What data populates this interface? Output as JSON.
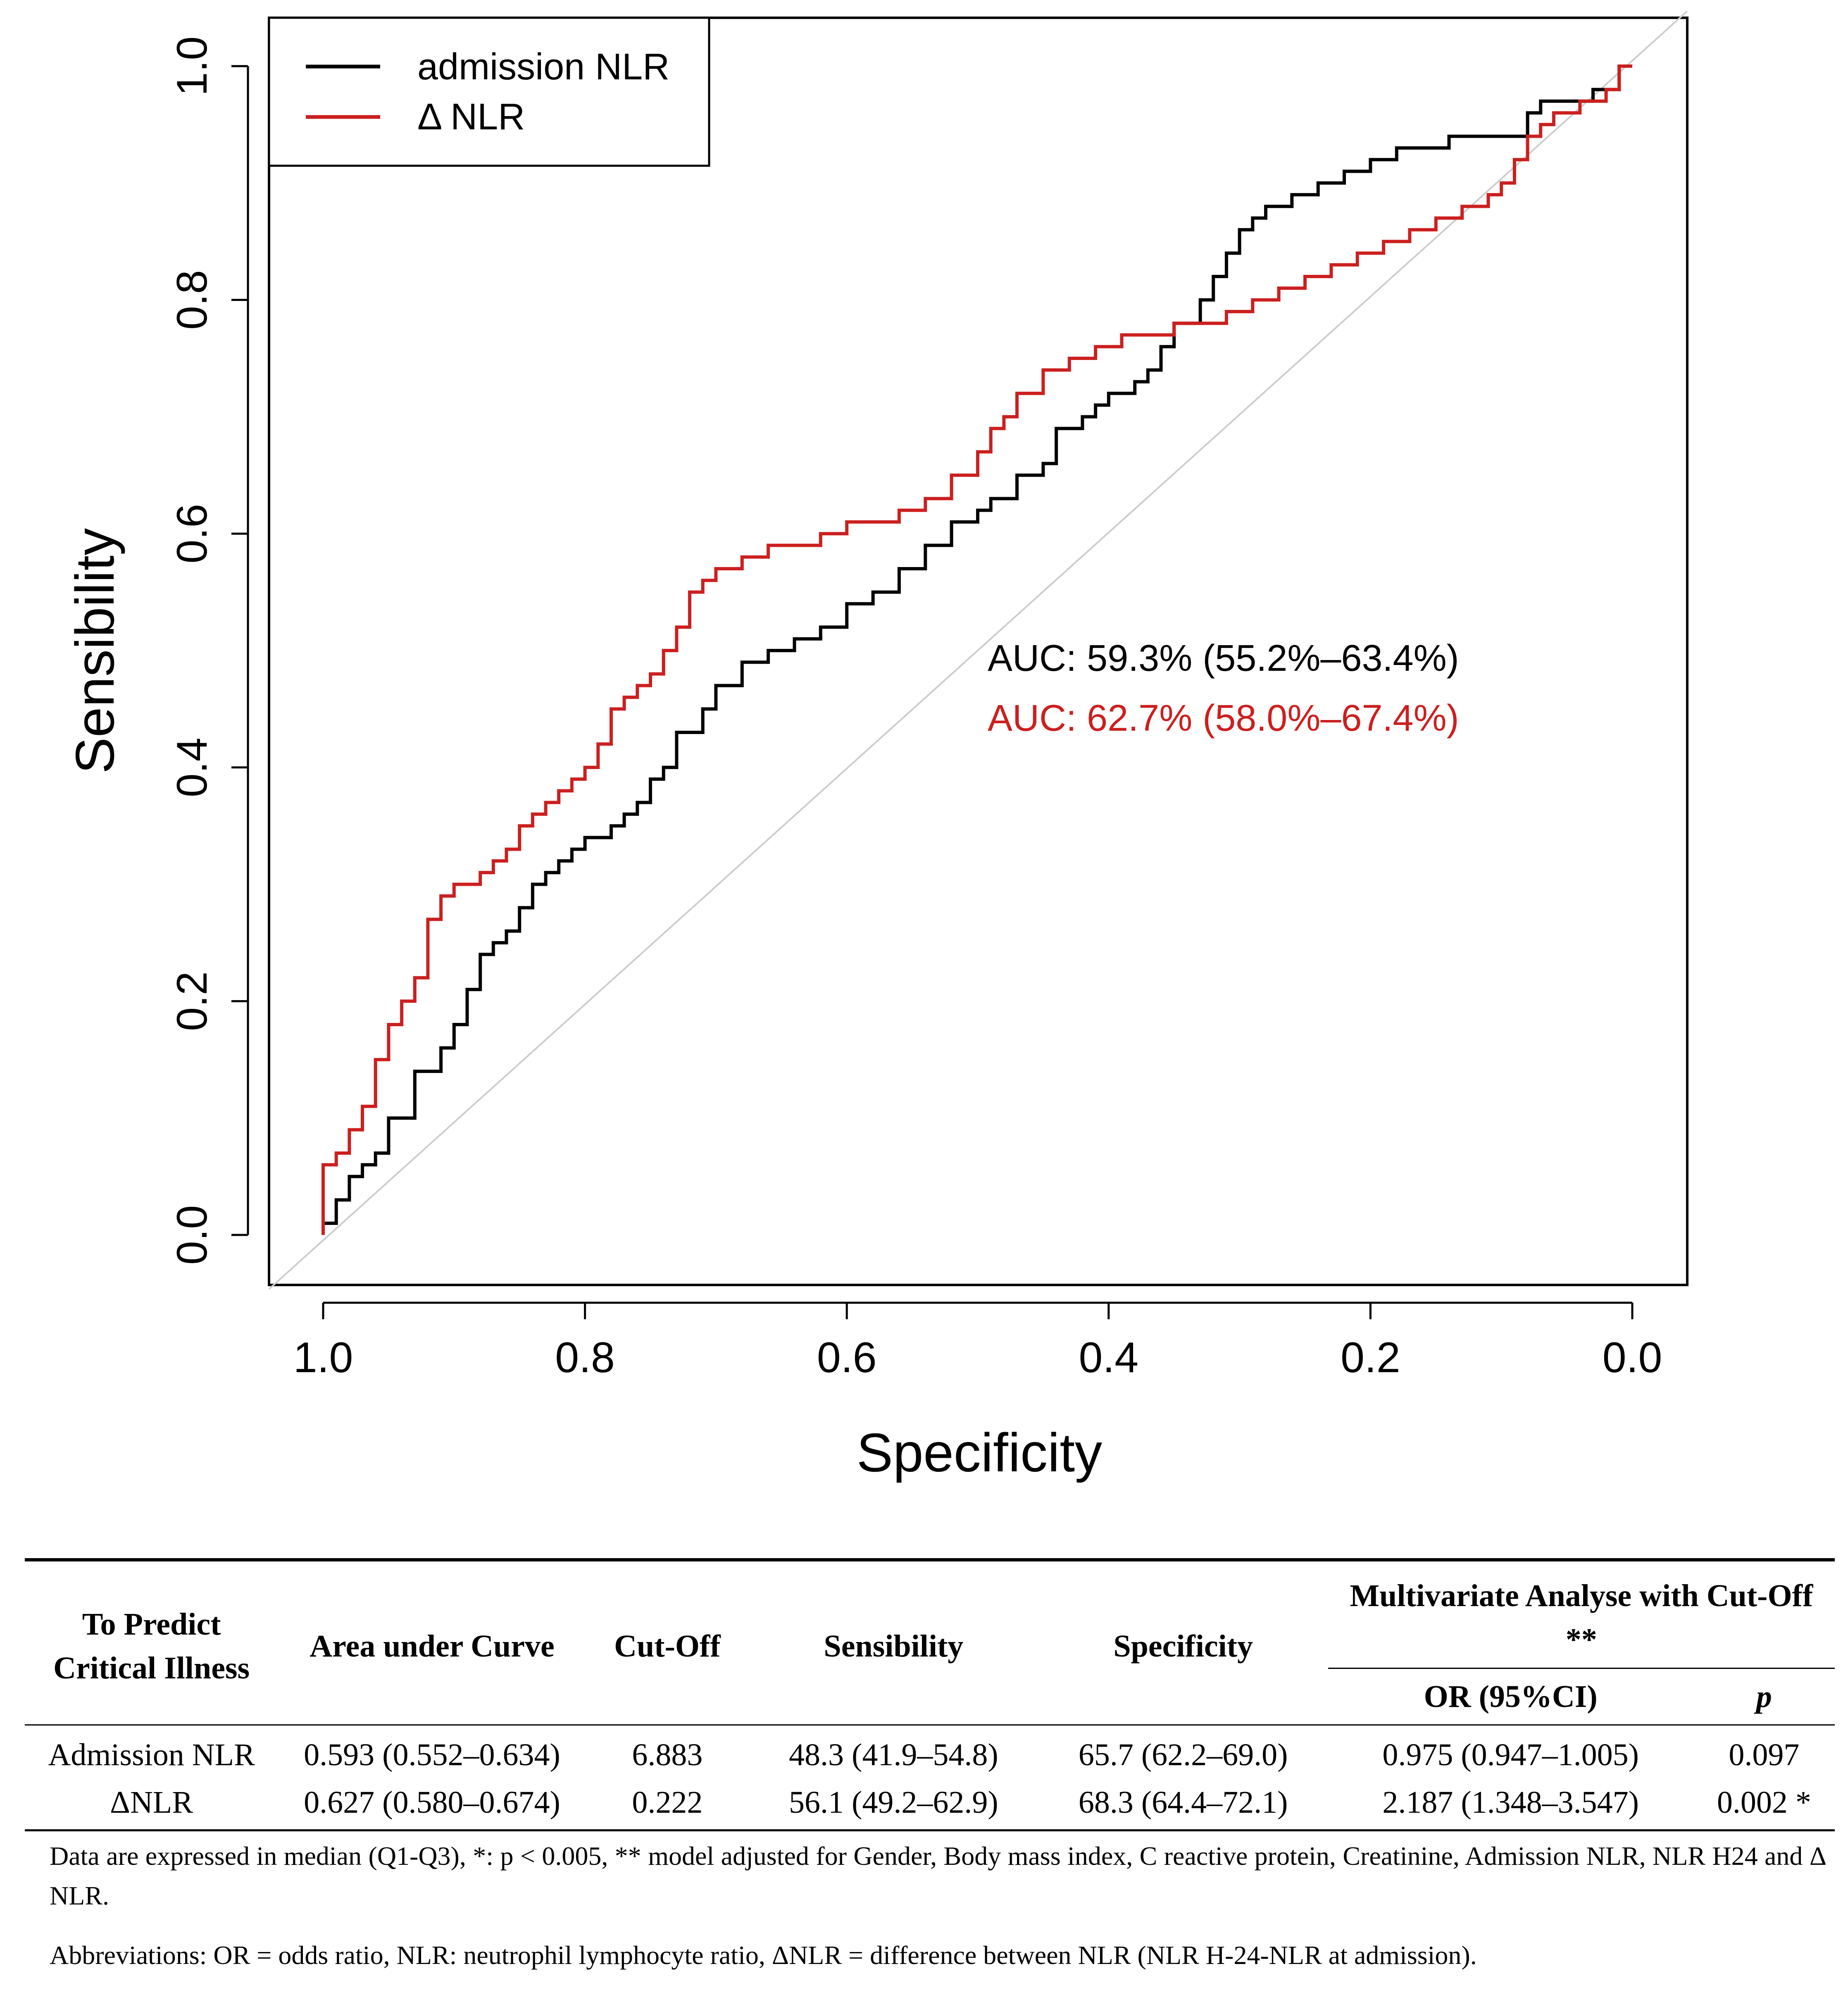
{
  "chart_data": {
    "type": "line",
    "title": "",
    "xlabel": "Specificity",
    "ylabel": "Sensibility",
    "xlim": [
      1.0,
      0.0
    ],
    "ylim": [
      0.0,
      1.0
    ],
    "x_reversed": true,
    "x_ticks": [
      "1.0",
      "0.8",
      "0.6",
      "0.4",
      "0.2",
      "0.0"
    ],
    "x_tick_values": [
      1.0,
      0.8,
      0.6,
      0.4,
      0.2,
      0.0
    ],
    "y_ticks": [
      "0.0",
      "0.2",
      "0.4",
      "0.6",
      "0.8",
      "1.0"
    ],
    "y_tick_values": [
      0.0,
      0.2,
      0.4,
      0.6,
      0.8,
      1.0
    ],
    "grid": false,
    "legend_position": "top-left",
    "reference_line": {
      "from": [
        1.0,
        0.0
      ],
      "to": [
        0.0,
        1.0
      ],
      "color": "#cccccc"
    },
    "series": [
      {
        "name": "admission NLR",
        "color": "#000000",
        "specificity": [
          1.0,
          0.99,
          0.98,
          0.97,
          0.96,
          0.95,
          0.93,
          0.91,
          0.9,
          0.89,
          0.88,
          0.87,
          0.86,
          0.85,
          0.84,
          0.83,
          0.82,
          0.81,
          0.8,
          0.79,
          0.78,
          0.77,
          0.76,
          0.75,
          0.74,
          0.73,
          0.71,
          0.7,
          0.68,
          0.66,
          0.64,
          0.62,
          0.6,
          0.58,
          0.56,
          0.54,
          0.52,
          0.5,
          0.49,
          0.47,
          0.45,
          0.44,
          0.42,
          0.41,
          0.4,
          0.39,
          0.38,
          0.37,
          0.36,
          0.35,
          0.33,
          0.32,
          0.31,
          0.3,
          0.29,
          0.28,
          0.27,
          0.26,
          0.25,
          0.24,
          0.22,
          0.2,
          0.18,
          0.16,
          0.15,
          0.14,
          0.12,
          0.1,
          0.08,
          0.07,
          0.06,
          0.05,
          0.04,
          0.03,
          0.02,
          0.01,
          0.0
        ],
        "sensibility": [
          0.0,
          0.01,
          0.03,
          0.05,
          0.06,
          0.07,
          0.1,
          0.14,
          0.16,
          0.18,
          0.21,
          0.24,
          0.25,
          0.26,
          0.28,
          0.3,
          0.31,
          0.32,
          0.33,
          0.34,
          0.34,
          0.35,
          0.36,
          0.37,
          0.39,
          0.4,
          0.43,
          0.45,
          0.47,
          0.49,
          0.5,
          0.51,
          0.52,
          0.54,
          0.55,
          0.57,
          0.59,
          0.61,
          0.62,
          0.63,
          0.65,
          0.66,
          0.69,
          0.7,
          0.71,
          0.72,
          0.72,
          0.73,
          0.74,
          0.76,
          0.78,
          0.8,
          0.82,
          0.84,
          0.86,
          0.87,
          0.88,
          0.88,
          0.89,
          0.89,
          0.9,
          0.91,
          0.92,
          0.93,
          0.93,
          0.93,
          0.94,
          0.94,
          0.94,
          0.96,
          0.97,
          0.97,
          0.97,
          0.97,
          0.98,
          0.98,
          1.0
        ]
      },
      {
        "name": "Δ NLR",
        "color": "#cc1f1f",
        "specificity": [
          1.0,
          1.0,
          0.99,
          0.98,
          0.97,
          0.96,
          0.95,
          0.94,
          0.93,
          0.92,
          0.91,
          0.9,
          0.89,
          0.88,
          0.87,
          0.86,
          0.85,
          0.84,
          0.83,
          0.82,
          0.81,
          0.8,
          0.79,
          0.78,
          0.77,
          0.76,
          0.75,
          0.74,
          0.73,
          0.72,
          0.71,
          0.7,
          0.69,
          0.68,
          0.67,
          0.66,
          0.64,
          0.62,
          0.6,
          0.58,
          0.56,
          0.54,
          0.52,
          0.5,
          0.49,
          0.48,
          0.47,
          0.45,
          0.43,
          0.41,
          0.39,
          0.37,
          0.35,
          0.33,
          0.31,
          0.29,
          0.27,
          0.25,
          0.23,
          0.21,
          0.19,
          0.17,
          0.15,
          0.13,
          0.11,
          0.1,
          0.09,
          0.08,
          0.07,
          0.06,
          0.04,
          0.02,
          0.01,
          0.0
        ],
        "sensibility": [
          0.0,
          0.05,
          0.06,
          0.07,
          0.09,
          0.11,
          0.15,
          0.18,
          0.2,
          0.22,
          0.27,
          0.29,
          0.3,
          0.3,
          0.31,
          0.32,
          0.33,
          0.35,
          0.36,
          0.37,
          0.38,
          0.39,
          0.4,
          0.42,
          0.45,
          0.46,
          0.47,
          0.48,
          0.5,
          0.52,
          0.55,
          0.56,
          0.57,
          0.57,
          0.58,
          0.58,
          0.59,
          0.59,
          0.6,
          0.61,
          0.61,
          0.62,
          0.63,
          0.65,
          0.67,
          0.69,
          0.7,
          0.72,
          0.74,
          0.75,
          0.76,
          0.77,
          0.77,
          0.78,
          0.78,
          0.79,
          0.8,
          0.81,
          0.82,
          0.83,
          0.84,
          0.85,
          0.86,
          0.87,
          0.88,
          0.89,
          0.9,
          0.92,
          0.94,
          0.95,
          0.96,
          0.97,
          0.98,
          1.0
        ]
      }
    ],
    "annotations": [
      {
        "text": "AUC: 59.3% (55.2%–63.4%)",
        "color": "#000000",
        "series": "admission NLR"
      },
      {
        "text": "AUC: 62.7% (58.0%–67.4%)",
        "color": "#cc1f1f",
        "series": "Δ NLR"
      }
    ]
  },
  "table": {
    "headers": {
      "col1": "To Predict Critical Illness",
      "col2": "Area under Curve",
      "col3": "Cut-Off",
      "col4": "Sensibility",
      "col5": "Specificity",
      "group": "Multivariate Analyse with Cut-Off **",
      "sub_or": "OR (95%CI)",
      "sub_p": "p"
    },
    "rows": [
      {
        "label": "Admission NLR",
        "auc": "0.593 (0.552–0.634)",
        "cutoff": "6.883",
        "sensibility": "48.3 (41.9–54.8)",
        "specificity": "65.7 (62.2–69.0)",
        "or": "0.975 (0.947–1.005)",
        "p": "0.097"
      },
      {
        "label": "ΔNLR",
        "auc": "0.627 (0.580–0.674)",
        "cutoff": "0.222",
        "sensibility": "56.1 (49.2–62.9)",
        "specificity": "68.3 (64.4–72.1)",
        "or": "2.187 (1.348–3.547)",
        "p": "0.002 *"
      }
    ]
  },
  "notes": {
    "note1": "Data are expressed in median (Q1-Q3), *: p < 0.005, ** model adjusted for Gender, Body mass index, C reactive protein, Creatinine, Admission NLR, NLR H24 and Δ NLR.",
    "note2": "Abbreviations: OR = odds ratio, NLR: neutrophil lymphocyte ratio, ΔNLR = difference between NLR (NLR H-24-NLR at admission)."
  }
}
